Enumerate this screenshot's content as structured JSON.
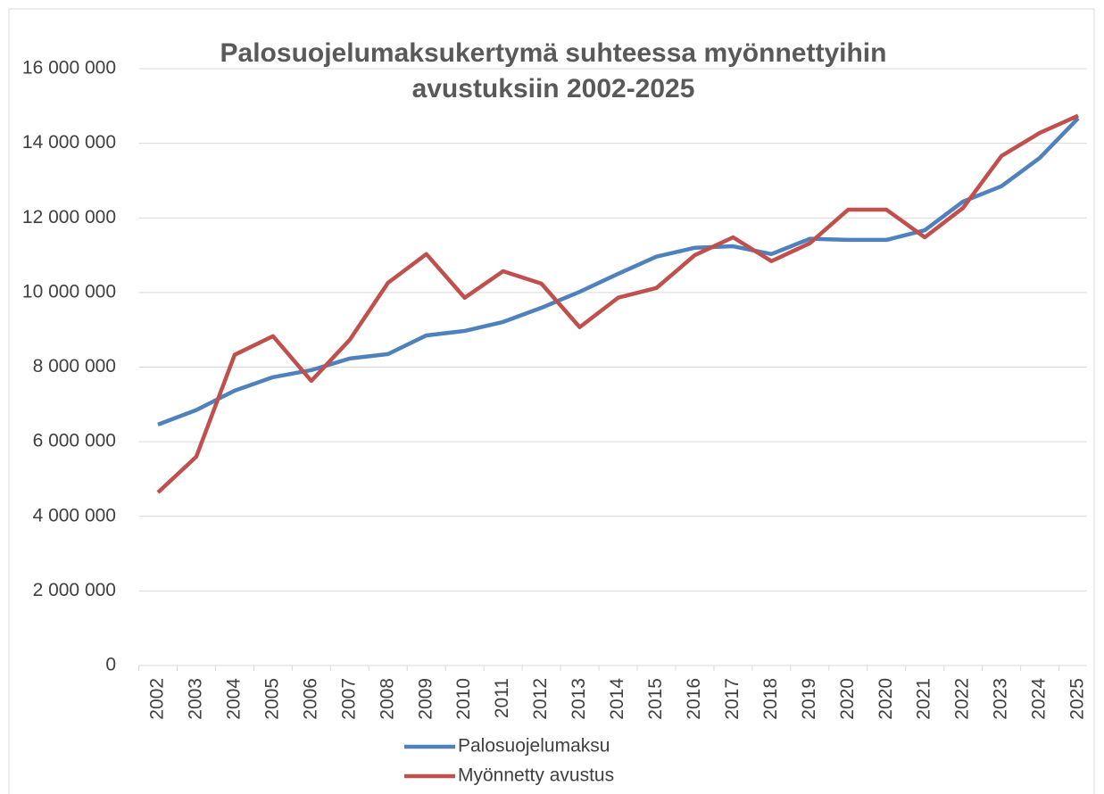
{
  "chart_data": {
    "type": "line",
    "title": "Palosuojelumaksukertymä suhteessa myönnettyihin avustuksiin 2002-2025",
    "categories": [
      "2002",
      "2003",
      "2004",
      "2005",
      "2006",
      "2007",
      "2008",
      "2009",
      "2010",
      "2011",
      "2012",
      "2013",
      "2014",
      "2015",
      "2016",
      "2017",
      "2018",
      "2019",
      "2020",
      "2020",
      "2021",
      "2022",
      "2023",
      "2024",
      "2025"
    ],
    "series": [
      {
        "name": "Palosuojelumaksu",
        "color": "#4f81bd",
        "values": [
          6460000,
          6850000,
          7370000,
          7730000,
          7920000,
          8230000,
          8350000,
          8850000,
          8970000,
          9210000,
          9590000,
          10020000,
          10500000,
          10960000,
          11200000,
          11240000,
          11030000,
          11440000,
          11410000,
          11410000,
          11670000,
          12440000,
          12850000,
          13610000,
          14670000
        ]
      },
      {
        "name": "Myönnetty avustus",
        "color": "#c0504d",
        "values": [
          4640000,
          5600000,
          8330000,
          8830000,
          7630000,
          8730000,
          10260000,
          11030000,
          9860000,
          10570000,
          10240000,
          9070000,
          9860000,
          10120000,
          11000000,
          11480000,
          10840000,
          11320000,
          12220000,
          12220000,
          11480000,
          12270000,
          13660000,
          14280000,
          14740000
        ]
      }
    ],
    "ylim": [
      0,
      16000000
    ],
    "yticks": [
      0,
      {
        "value": 2000000,
        "label": "2 000 000"
      },
      {
        "value": 4000000,
        "label": "4 000 000"
      },
      {
        "value": 6000000,
        "label": "6 000 000"
      },
      {
        "value": 8000000,
        "label": "8 000 000"
      },
      {
        "value": 10000000,
        "label": "10 000 000"
      },
      {
        "value": 12000000,
        "label": "12 000 000"
      },
      {
        "value": 14000000,
        "label": "14 000 000"
      },
      {
        "value": 16000000,
        "label": "16 000 000"
      }
    ],
    "grid": true
  }
}
